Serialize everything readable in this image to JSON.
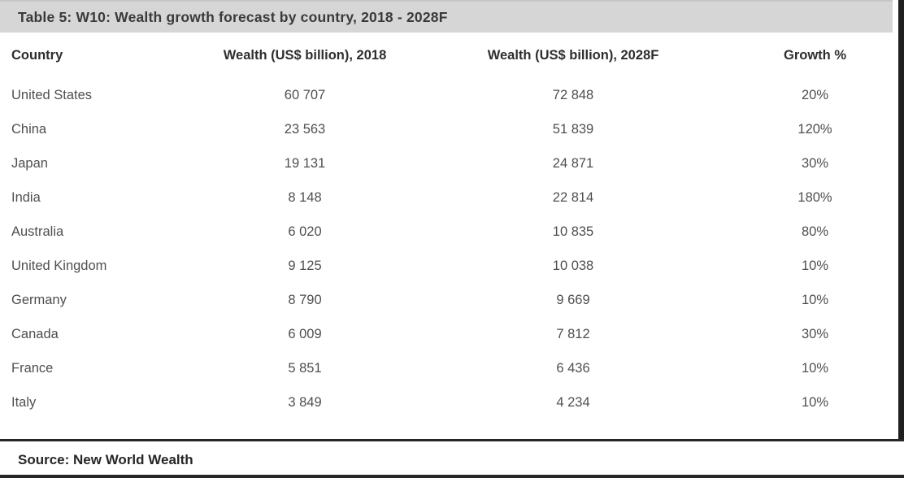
{
  "title": "Table 5: W10: Wealth growth forecast by country, 2018 - 2028F",
  "source_label": "Source: New World Wealth",
  "table": {
    "columns": [
      "Country",
      "Wealth (US$ billion), 2018",
      "Wealth (US$ billion), 2028F",
      "Growth %"
    ],
    "rows": [
      [
        "United States",
        "60 707",
        "72 848",
        "20%"
      ],
      [
        "China",
        "23 563",
        "51 839",
        "120%"
      ],
      [
        "Japan",
        "19 131",
        "24 871",
        "30%"
      ],
      [
        "India",
        "8 148",
        "22 814",
        "180%"
      ],
      [
        "Australia",
        "6 020",
        "10 835",
        "80%"
      ],
      [
        "United Kingdom",
        "9 125",
        "10 038",
        "10%"
      ],
      [
        "Germany",
        "8 790",
        "9 669",
        "10%"
      ],
      [
        "Canada",
        "6 009",
        "7 812",
        "30%"
      ],
      [
        "France",
        "5 851",
        "6 436",
        "10%"
      ],
      [
        "Italy",
        "3 849",
        "4 234",
        "10%"
      ]
    ]
  },
  "chart_data": {
    "type": "table",
    "title": "Table 5: W10: Wealth growth forecast by country, 2018 - 2028F",
    "columns": [
      "Country",
      "Wealth (US$ billion), 2018",
      "Wealth (US$ billion), 2028F",
      "Growth %"
    ],
    "rows": [
      {
        "country": "United States",
        "wealth_2018": 60707,
        "wealth_2028f": 72848,
        "growth_pct": 20
      },
      {
        "country": "China",
        "wealth_2018": 23563,
        "wealth_2028f": 51839,
        "growth_pct": 120
      },
      {
        "country": "Japan",
        "wealth_2018": 19131,
        "wealth_2028f": 24871,
        "growth_pct": 30
      },
      {
        "country": "India",
        "wealth_2018": 8148,
        "wealth_2028f": 22814,
        "growth_pct": 180
      },
      {
        "country": "Australia",
        "wealth_2018": 6020,
        "wealth_2028f": 10835,
        "growth_pct": 80
      },
      {
        "country": "United Kingdom",
        "wealth_2018": 9125,
        "wealth_2028f": 10038,
        "growth_pct": 10
      },
      {
        "country": "Germany",
        "wealth_2018": 8790,
        "wealth_2028f": 9669,
        "growth_pct": 10
      },
      {
        "country": "Canada",
        "wealth_2018": 6009,
        "wealth_2028f": 7812,
        "growth_pct": 30
      },
      {
        "country": "France",
        "wealth_2018": 5851,
        "wealth_2028f": 6436,
        "growth_pct": 10
      },
      {
        "country": "Italy",
        "wealth_2018": 3849,
        "wealth_2028f": 4234,
        "growth_pct": 10
      }
    ],
    "source": "Source: New World Wealth"
  },
  "colors": {
    "title_bar_bg": "#d6d6d6",
    "title_text": "#3a3a3a",
    "body_text": "#4f4f4f",
    "edge_bar": "#1f1f1f",
    "divider": "#262626"
  }
}
